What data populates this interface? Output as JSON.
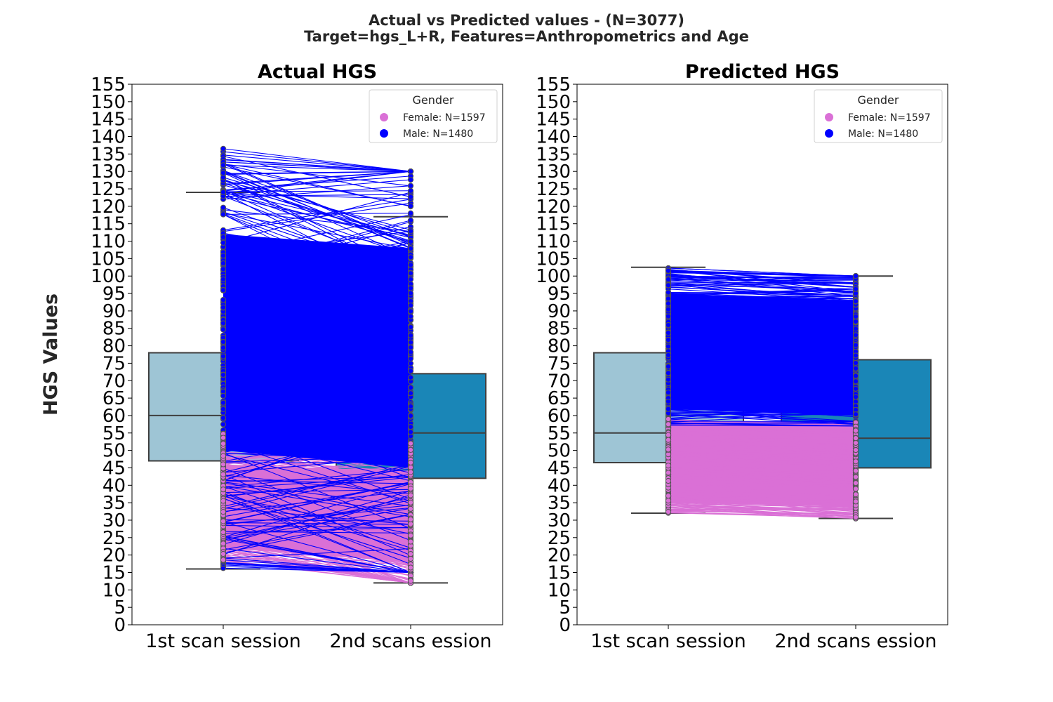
{
  "chart_data": {
    "type": "box",
    "title_line1": "Actual vs Predicted values - (N=3077)",
    "title_line2": "Target=hgs_L+R, Features=Anthropometrics and Age",
    "ylabel": "HGS Values",
    "ylim": [
      0,
      155
    ],
    "yticks": [
      0,
      5,
      10,
      15,
      20,
      25,
      30,
      35,
      40,
      45,
      50,
      55,
      60,
      65,
      70,
      75,
      80,
      85,
      90,
      95,
      100,
      105,
      110,
      115,
      120,
      125,
      130,
      135,
      140,
      145,
      150,
      155
    ],
    "categories": [
      "1st scan session",
      "2nd scans ession"
    ],
    "colors": {
      "box_first": "#9ec5d5",
      "box_second": "#1a86b7",
      "female": "#da70d6",
      "male": "#0000ff",
      "box_edge": "#3f3f3f"
    },
    "legend": {
      "title": "Gender",
      "position": "top-right",
      "entries": [
        {
          "label": "Female: N=1597",
          "color": "#da70d6"
        },
        {
          "label": "Male: N=1480",
          "color": "#0000ff"
        }
      ]
    },
    "panels": [
      {
        "title": "Actual HGS",
        "boxes": [
          {
            "category": "1st scan session",
            "whislo": 16,
            "q1": 47,
            "med": 60,
            "q3": 78,
            "whishi": 124
          },
          {
            "category": "2nd scans ession",
            "whislo": 12,
            "q1": 42,
            "med": 55,
            "q3": 72,
            "whishi": 117
          }
        ],
        "female_range": {
          "first": [
            18,
            55
          ],
          "second": [
            12,
            52
          ]
        },
        "male_range": {
          "first": [
            16,
            137
          ],
          "second": [
            15,
            130
          ]
        }
      },
      {
        "title": "Predicted HGS",
        "boxes": [
          {
            "category": "1st scan session",
            "whislo": 32,
            "q1": 46.5,
            "med": 55,
            "q3": 78,
            "whishi": 102.5
          },
          {
            "category": "2nd scans ession",
            "whislo": 30.5,
            "q1": 45,
            "med": 53.5,
            "q3": 76,
            "whishi": 100
          }
        ],
        "female_range": {
          "first": [
            32,
            59
          ],
          "second": [
            30.5,
            58
          ]
        },
        "male_range": {
          "first": [
            57,
            102.5
          ],
          "second": [
            57,
            100
          ]
        }
      }
    ]
  }
}
